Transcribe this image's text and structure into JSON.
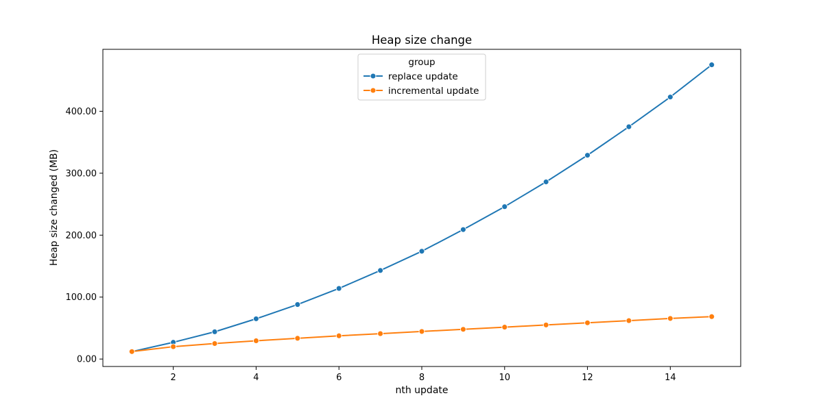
{
  "chart_data": {
    "type": "line",
    "title": "Heap size change",
    "xlabel": "nth update",
    "ylabel": "Heap size changed (MB)",
    "x": [
      1,
      2,
      3,
      4,
      5,
      6,
      7,
      8,
      9,
      10,
      11,
      12,
      13,
      14,
      15
    ],
    "xlim": [
      0.3,
      15.7
    ],
    "ylim": [
      -12,
      500
    ],
    "xticks": [
      2,
      4,
      6,
      8,
      10,
      12,
      14
    ],
    "xtick_labels": [
      "2",
      "4",
      "6",
      "8",
      "10",
      "12",
      "14"
    ],
    "yticks": [
      0,
      100,
      200,
      300,
      400
    ],
    "ytick_labels": [
      "0.00",
      "100.00",
      "200.00",
      "300.00",
      "400.00"
    ],
    "grid": false,
    "legend": {
      "title": "group",
      "placement": "upper-center"
    },
    "series": [
      {
        "name": "replace update",
        "color": "#1f77b4",
        "marker": "circle",
        "values": [
          12,
          27,
          44,
          65,
          88,
          114,
          143,
          174,
          209,
          246,
          286,
          329,
          375,
          423,
          475
        ]
      },
      {
        "name": "incremental update",
        "color": "#ff7f0e",
        "marker": "circle",
        "values": [
          12,
          20,
          25,
          29.5,
          33.5,
          37.5,
          41,
          44.5,
          48,
          51.5,
          55,
          58.5,
          62,
          65.5,
          68.5
        ]
      }
    ]
  }
}
